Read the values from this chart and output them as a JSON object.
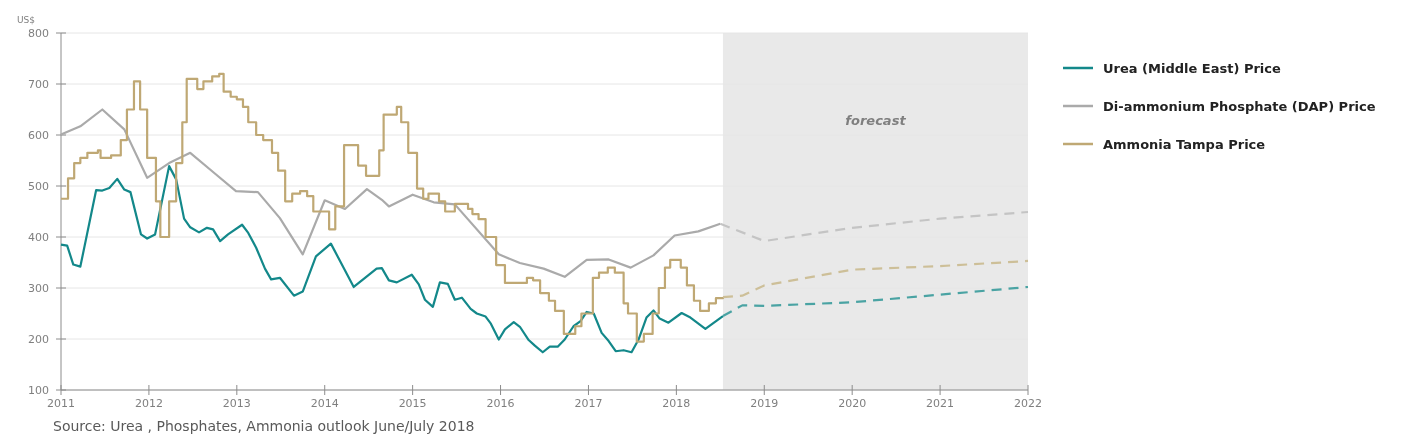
{
  "chart_data": {
    "type": "line",
    "ylabel": "US$",
    "xlim": [
      2011,
      2022
    ],
    "xticks": [
      2011,
      2012,
      2013,
      2014,
      2015,
      2016,
      2017,
      2018,
      2019,
      2020,
      2021,
      2022
    ],
    "ylim": [
      100,
      800
    ],
    "yticks": [
      100,
      200,
      300,
      400,
      500,
      600,
      700,
      800
    ],
    "grid": "y",
    "legend": "right",
    "bands": [
      {
        "axis": "x",
        "from": 2018.53,
        "to": 2022,
        "label": "forecast",
        "color": "#e9e9e9"
      }
    ],
    "annotations": [
      "Source: Urea , Phosphates, Ammonia outlook June/July 2018"
    ],
    "series": [
      {
        "name": "Urea (Middle East) Price",
        "color": "#13888a",
        "line_style": "solid",
        "x": [
          2011,
          2011.07,
          2011.14,
          2011.22,
          2011.4,
          2011.47,
          2011.55,
          2011.64,
          2011.72,
          2011.79,
          2011.91,
          2011.98,
          2012.07,
          2012.23,
          2012.31,
          2012.4,
          2012.47,
          2012.57,
          2012.66,
          2012.73,
          2012.81,
          2012.9,
          2013.06,
          2013.13,
          2013.22,
          2013.32,
          2013.39,
          2013.49,
          2013.65,
          2013.75,
          2013.9,
          2014.07,
          2014.33,
          2014.59,
          2014.65,
          2014.73,
          2014.82,
          2014.99,
          2015.07,
          2015.14,
          2015.23,
          2015.31,
          2015.4,
          2015.48,
          2015.56,
          2015.66,
          2015.73,
          2015.83,
          2015.89,
          2015.98,
          2016.05,
          2016.15,
          2016.22,
          2016.32,
          2016.39,
          2016.48,
          2016.56,
          2016.65,
          2016.73,
          2016.83,
          2016.91,
          2016.98,
          2017.06,
          2017.15,
          2017.23,
          2017.31,
          2017.4,
          2017.49,
          2017.57,
          2017.66,
          2017.74,
          2017.81,
          2017.91,
          2018.06,
          2018.16,
          2018.33,
          2018.53
        ],
        "values": [
          385,
          383,
          346,
          342,
          492,
          491,
          496,
          514,
          493,
          488,
          405,
          397,
          405,
          539,
          513,
          436,
          419,
          409,
          418,
          415,
          392,
          405,
          424,
          408,
          379,
          338,
          317,
          320,
          285,
          293,
          362,
          387,
          302,
          338,
          339,
          315,
          311,
          326,
          307,
          277,
          263,
          311,
          308,
          277,
          281,
          259,
          250,
          244,
          230,
          199,
          219,
          233,
          224,
          198,
          187,
          174,
          185,
          185,
          199,
          225,
          235,
          253,
          250,
          212,
          196,
          176,
          178,
          174,
          199,
          242,
          256,
          240,
          232,
          251,
          242,
          220,
          245
        ]
      },
      {
        "name": "Di-ammonium Phosphate (DAP) Price",
        "color": "#aaaaaa",
        "line_style": "solid",
        "x": [
          2011,
          2011.22,
          2011.47,
          2011.72,
          2011.98,
          2012.23,
          2012.47,
          2012.74,
          2012.99,
          2013.24,
          2013.49,
          2013.75,
          2014,
          2014.23,
          2014.48,
          2014.65,
          2014.73,
          2015,
          2015.24,
          2015.48,
          2015.98,
          2016.22,
          2016.49,
          2016.73,
          2016.98,
          2017.23,
          2017.48,
          2017.74,
          2017.98,
          2018.25,
          2018.5
        ],
        "values": [
          601,
          617,
          650,
          611,
          516,
          545,
          565,
          526,
          490,
          488,
          437,
          366,
          472,
          455,
          494,
          473,
          460,
          483,
          468,
          464,
          366,
          349,
          338,
          322,
          355,
          356,
          340,
          364,
          403,
          411,
          426
        ]
      },
      {
        "name": "Ammonia Tampa Price",
        "type": "step",
        "color": "#bfa874",
        "line_style": "solid",
        "x": [
          2011,
          2011.08,
          2011.15,
          2011.22,
          2011.3,
          2011.42,
          2011.45,
          2011.57,
          2011.68,
          2011.75,
          2011.83,
          2011.9,
          2011.98,
          2012.08,
          2012.13,
          2012.23,
          2012.31,
          2012.38,
          2012.43,
          2012.55,
          2012.62,
          2012.72,
          2012.8,
          2012.85,
          2012.93,
          2013,
          2013.07,
          2013.13,
          2013.22,
          2013.3,
          2013.4,
          2013.47,
          2013.55,
          2013.63,
          2013.72,
          2013.8,
          2013.87,
          2014.05,
          2014.12,
          2014.22,
          2014.38,
          2014.47,
          2014.62,
          2014.67,
          2014.82,
          2014.87,
          2014.95,
          2015.05,
          2015.12,
          2015.18,
          2015.3,
          2015.37,
          2015.48,
          2015.63,
          2015.68,
          2015.75,
          2015.83,
          2015.95,
          2016.05,
          2016.3,
          2016.37,
          2016.45,
          2016.55,
          2016.62,
          2016.72,
          2016.85,
          2016.92,
          2017.05,
          2017.12,
          2017.22,
          2017.3,
          2017.4,
          2017.45,
          2017.55,
          2017.63,
          2017.73,
          2017.8,
          2017.87,
          2017.93,
          2018.05,
          2018.12,
          2018.2,
          2018.27,
          2018.37,
          2018.45,
          2018.53
        ],
        "values": [
          475,
          515,
          545,
          555,
          565,
          570,
          555,
          560,
          590,
          650,
          705,
          650,
          555,
          470,
          400,
          470,
          545,
          625,
          710,
          690,
          705,
          715,
          720,
          685,
          675,
          670,
          655,
          625,
          600,
          590,
          565,
          530,
          470,
          485,
          490,
          480,
          450,
          415,
          460,
          580,
          540,
          520,
          570,
          640,
          655,
          625,
          565,
          495,
          475,
          485,
          470,
          450,
          465,
          455,
          445,
          435,
          400,
          345,
          310,
          320,
          315,
          290,
          275,
          255,
          210,
          225,
          250,
          320,
          330,
          340,
          330,
          270,
          250,
          195,
          210,
          250,
          300,
          340,
          355,
          340,
          305,
          275,
          255,
          270,
          280,
          282
        ]
      },
      {
        "color": "#4aa3a3",
        "line_style": "dashed",
        "x": [
          2018.53,
          2018.75,
          2019,
          2020,
          2021,
          2022
        ],
        "values": [
          245,
          266,
          265,
          272,
          287,
          302
        ]
      },
      {
        "color": "#c4c4c4",
        "line_style": "dashed",
        "x": [
          2018.5,
          2019,
          2020,
          2021,
          2022
        ],
        "values": [
          426,
          392,
          418,
          436,
          449
        ]
      },
      {
        "color": "#cdbf98",
        "line_style": "dashed",
        "x": [
          2018.53,
          2018.75,
          2019,
          2020,
          2021,
          2022
        ],
        "values": [
          282,
          285,
          305,
          336,
          343,
          353
        ]
      }
    ]
  }
}
